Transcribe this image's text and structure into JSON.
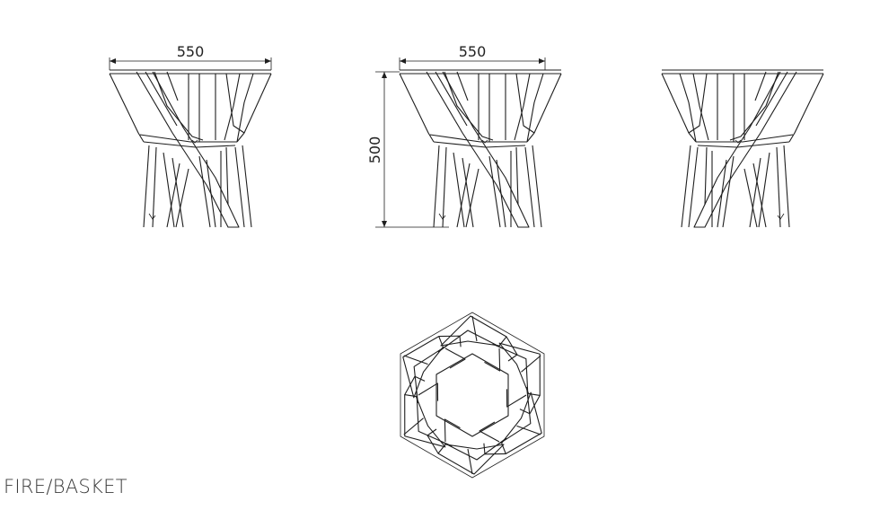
{
  "caption": "FIRE/BASKET",
  "dimensions": {
    "width_front": "550",
    "width_side": "550",
    "height_side": "500"
  },
  "views": [
    "elevation-left",
    "elevation-center",
    "elevation-right",
    "plan-top"
  ]
}
